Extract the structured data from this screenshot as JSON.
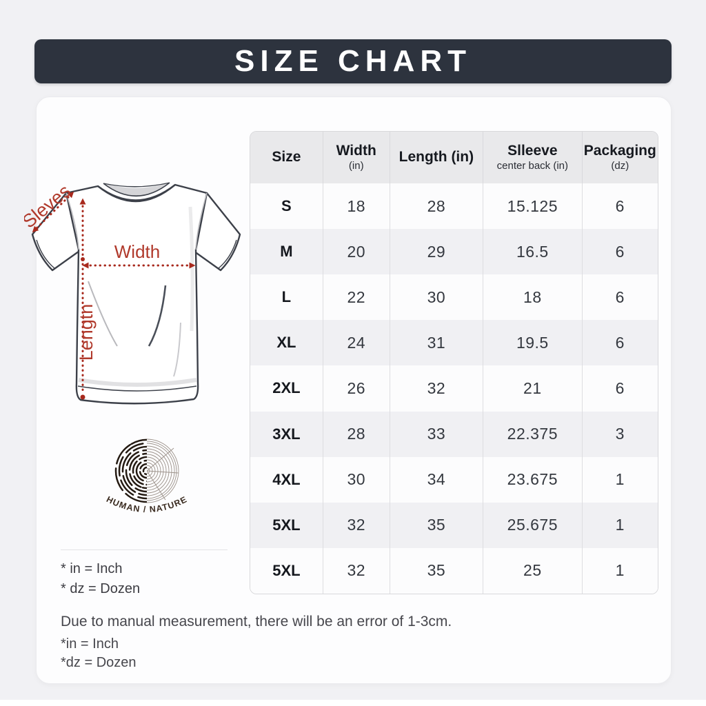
{
  "page": {
    "title": "SIZE CHART"
  },
  "diagram": {
    "sleeve_label": "Sleves",
    "width_label": "Width",
    "length_label": "Lengtn",
    "logo_caption": "HUMAN / NATURE"
  },
  "card_footnotes": {
    "in": "* in = Inch",
    "dz": "* dz = Dozen"
  },
  "notes": {
    "measurement": "Due to manual measurement, there will be an error of 1-3cm.",
    "in": "*in = Inch",
    "dz": "*dz = Dozen"
  },
  "colors": {
    "banner_bg": "#2d333e",
    "banner_text": "#ffffff",
    "annotation_red": "#b0392b",
    "arrow_red": "#a8291d",
    "header_bg": "#e9e9eb",
    "row_bg": "#fcfcfd",
    "row_alt_bg": "#f0f0f3",
    "card_bg": "#fdfdfe",
    "page_bg": "#f1f1f4",
    "logo_ink": "#241a12"
  },
  "chart_data": {
    "type": "table",
    "title": "SIZE CHART",
    "columns": [
      {
        "label": "Size",
        "sub": ""
      },
      {
        "label": "Width",
        "sub": "(in)"
      },
      {
        "label": "Length (in)",
        "sub": ""
      },
      {
        "label": "Slleeve",
        "sub": "center back (in)"
      },
      {
        "label": "Packaging",
        "sub": "(dz)"
      }
    ],
    "rows": [
      [
        "S",
        "18",
        "28",
        "15.125",
        "6"
      ],
      [
        "M",
        "20",
        "29",
        "16.5",
        "6"
      ],
      [
        "L",
        "22",
        "30",
        "18",
        "6"
      ],
      [
        "XL",
        "24",
        "31",
        "19.5",
        "6"
      ],
      [
        "2XL",
        "26",
        "32",
        "21",
        "6"
      ],
      [
        "3XL",
        "28",
        "33",
        "22.375",
        "3"
      ],
      [
        "4XL",
        "30",
        "34",
        "23.675",
        "1"
      ],
      [
        "5XL",
        "32",
        "35",
        "25.675",
        "1"
      ],
      [
        "5XL",
        "32",
        "35",
        "25",
        "1"
      ]
    ]
  }
}
